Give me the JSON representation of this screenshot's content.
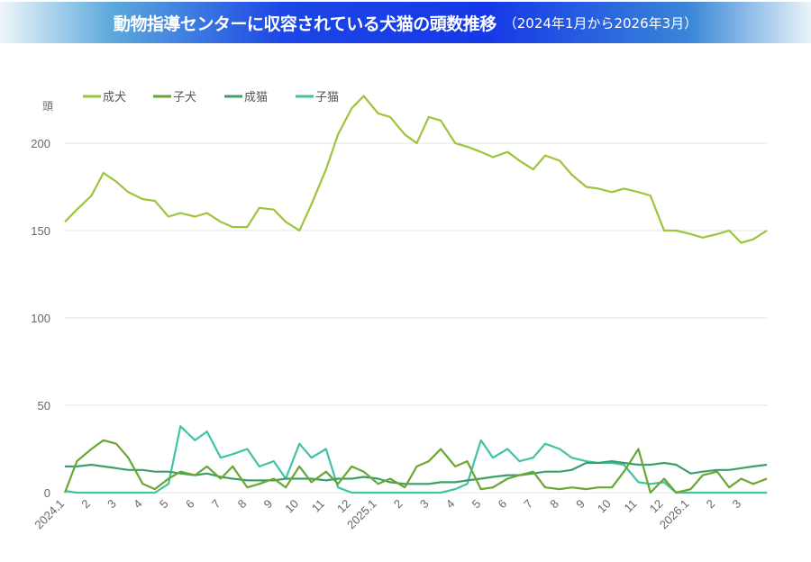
{
  "header": {
    "title": "動物指導センターに収容されている犬猫の頭数推移",
    "subtitle": "（2024年1月から2026年3月）"
  },
  "chart_data": {
    "type": "line",
    "ylabel": "頭",
    "ylim": [
      0,
      230
    ],
    "yticks": [
      0,
      50,
      100,
      150,
      200
    ],
    "grid": true,
    "legend": "top-left",
    "xtick_labels": [
      "2024.1",
      "2",
      "3",
      "4",
      "5",
      "6",
      "7",
      "8",
      "9",
      "10",
      "11",
      "12",
      "2025.1",
      "2",
      "3",
      "4",
      "5",
      "6",
      "7",
      "8",
      "9",
      "10",
      "11",
      "12",
      "2026.1",
      "2",
      "3"
    ],
    "x": [
      "2024-01-01",
      "2024-01-15",
      "2024-02-01",
      "2024-02-15",
      "2024-03-01",
      "2024-03-15",
      "2024-04-01",
      "2024-04-15",
      "2024-05-01",
      "2024-05-15",
      "2024-06-01",
      "2024-06-15",
      "2024-07-01",
      "2024-07-15",
      "2024-08-01",
      "2024-08-15",
      "2024-09-01",
      "2024-09-15",
      "2024-10-01",
      "2024-10-15",
      "2024-11-01",
      "2024-11-15",
      "2024-12-01",
      "2024-12-15",
      "2025-01-01",
      "2025-01-15",
      "2025-02-01",
      "2025-02-15",
      "2025-03-01",
      "2025-03-15",
      "2025-04-01",
      "2025-04-15",
      "2025-05-01",
      "2025-05-15",
      "2025-06-01",
      "2025-06-15",
      "2025-07-01",
      "2025-07-15",
      "2025-08-01",
      "2025-08-15",
      "2025-09-01",
      "2025-09-15",
      "2025-10-01",
      "2025-10-15",
      "2025-11-01",
      "2025-11-15",
      "2025-12-01",
      "2025-12-15",
      "2026-01-01",
      "2026-01-15",
      "2026-02-01",
      "2026-02-15",
      "2026-03-01",
      "2026-03-15",
      "2026-03-31"
    ],
    "series": [
      {
        "name": "成犬",
        "color": "#9cc43c",
        "values": [
          155,
          162,
          170,
          183,
          178,
          172,
          168,
          167,
          158,
          160,
          158,
          160,
          155,
          152,
          152,
          163,
          162,
          155,
          150,
          165,
          185,
          205,
          220,
          227,
          217,
          215,
          205,
          200,
          215,
          213,
          200,
          198,
          195,
          192,
          195,
          190,
          185,
          193,
          190,
          182,
          175,
          174,
          172,
          174,
          172,
          170,
          150,
          150,
          148,
          146,
          148,
          150,
          143,
          145,
          150
        ]
      },
      {
        "name": "子犬",
        "color": "#6aa632",
        "values": [
          0,
          18,
          25,
          30,
          28,
          20,
          5,
          2,
          8,
          12,
          10,
          15,
          8,
          15,
          3,
          5,
          8,
          3,
          15,
          6,
          12,
          5,
          15,
          12,
          5,
          8,
          3,
          15,
          18,
          25,
          15,
          18,
          2,
          3,
          8,
          10,
          12,
          3,
          2,
          3,
          2,
          3,
          3,
          12,
          25,
          0,
          8,
          0,
          2,
          10,
          12,
          3,
          8,
          5,
          8
        ]
      },
      {
        "name": "成猫",
        "color": "#3d9e6a",
        "values": [
          15,
          15,
          16,
          15,
          14,
          13,
          13,
          12,
          12,
          11,
          10,
          11,
          9,
          8,
          7,
          7,
          7,
          8,
          8,
          8,
          7,
          8,
          8,
          9,
          8,
          6,
          5,
          5,
          5,
          6,
          6,
          7,
          8,
          9,
          10,
          10,
          11,
          12,
          12,
          13,
          17,
          17,
          18,
          17,
          16,
          16,
          17,
          16,
          11,
          12,
          13,
          13,
          14,
          15,
          16
        ]
      },
      {
        "name": "子猫",
        "color": "#43c1a5",
        "values": [
          1,
          0,
          0,
          0,
          0,
          0,
          0,
          0,
          5,
          38,
          30,
          35,
          20,
          22,
          25,
          15,
          18,
          8,
          28,
          20,
          25,
          3,
          0,
          0,
          0,
          0,
          0,
          0,
          0,
          0,
          2,
          5,
          30,
          20,
          25,
          18,
          20,
          28,
          25,
          20,
          18,
          17,
          17,
          16,
          6,
          5,
          6,
          0,
          0,
          0,
          0,
          0,
          0,
          0,
          0
        ]
      }
    ]
  }
}
